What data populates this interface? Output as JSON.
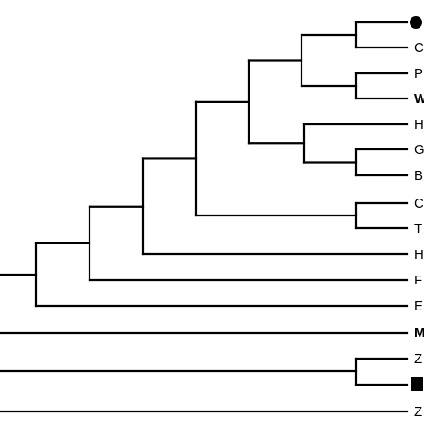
{
  "colors": {
    "line": "#000000",
    "background": "#ffffff"
  },
  "tree": {
    "tips": [
      {
        "label": "",
        "marker": "filled-circle-icon"
      },
      {
        "label": "C"
      },
      {
        "label": "P"
      },
      {
        "label": "W",
        "bold": true
      },
      {
        "label": "H"
      },
      {
        "label": "G"
      },
      {
        "label": "B"
      },
      {
        "label": "C"
      },
      {
        "label": "T"
      },
      {
        "label": "H"
      },
      {
        "label": "F"
      },
      {
        "label": "E"
      },
      {
        "label": "M",
        "bold": true
      },
      {
        "label": "Z"
      },
      {
        "label": "",
        "marker": "filled-square-icon"
      },
      {
        "label": "Z"
      }
    ]
  }
}
